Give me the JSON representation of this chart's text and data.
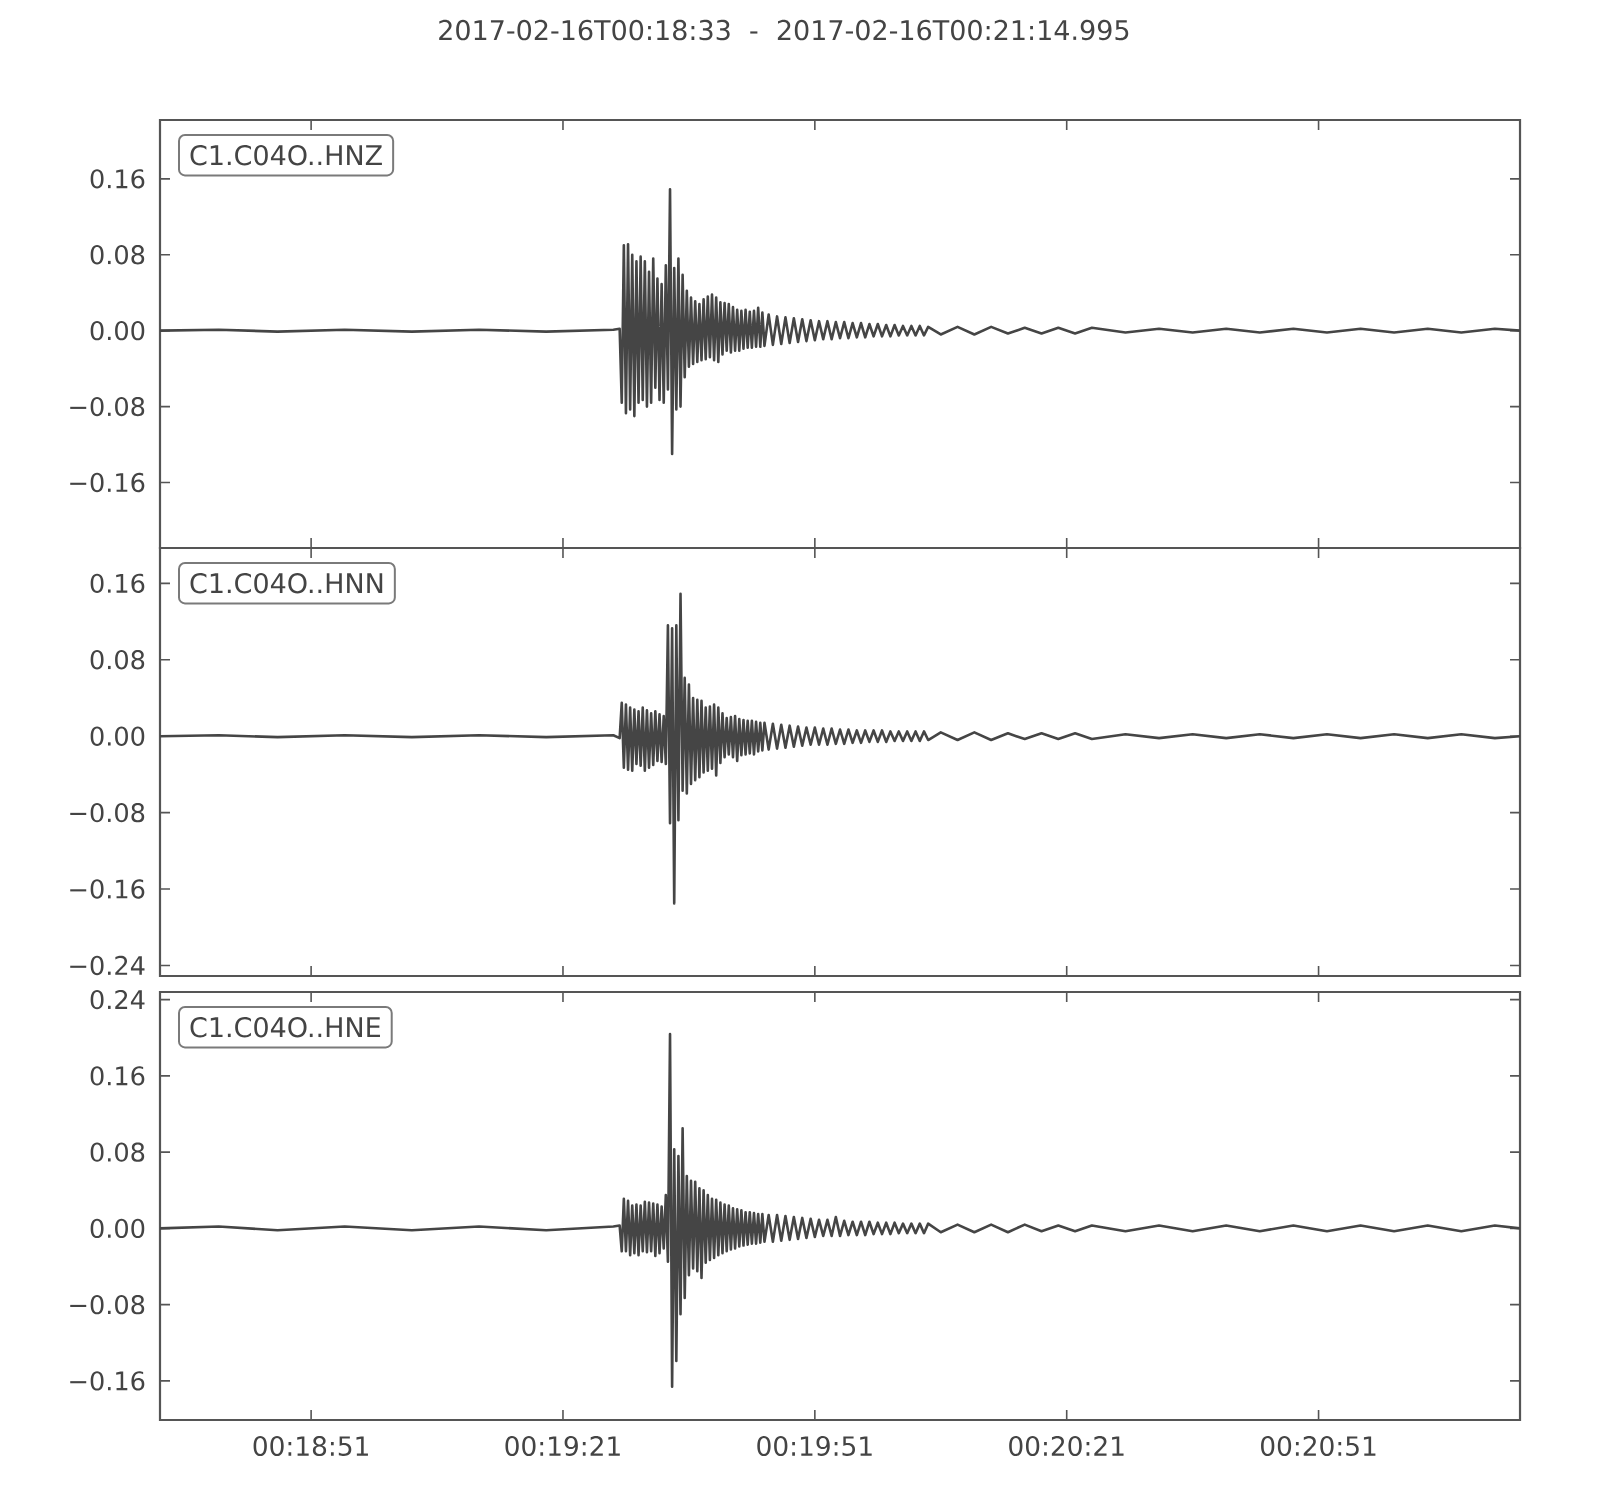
{
  "chart_data": [
    {
      "type": "line",
      "title": "2017-02-16T00:18:33  -  2017-02-16T00:21:14.995",
      "annotations": [
        "C1.C04O..HNZ"
      ],
      "x": [
        "2017-02-16T00:18:33",
        "2017-02-16T00:18:40",
        "2017-02-16T00:18:47",
        "2017-02-16T00:18:55",
        "2017-02-16T00:19:03",
        "2017-02-16T00:19:11",
        "2017-02-16T00:19:19",
        "2017-02-16T00:19:27",
        "2017-02-16T00:19:27.750",
        "2017-02-16T00:19:28",
        "2017-02-16T00:19:28.250",
        "2017-02-16T00:19:28.500",
        "2017-02-16T00:19:28.750",
        "2017-02-16T00:19:29",
        "2017-02-16T00:19:29.250",
        "2017-02-16T00:19:29.500",
        "2017-02-16T00:19:29.750",
        "2017-02-16T00:19:30",
        "2017-02-16T00:19:30.250",
        "2017-02-16T00:19:30.500",
        "2017-02-16T00:19:30.750",
        "2017-02-16T00:19:31",
        "2017-02-16T00:19:31.250",
        "2017-02-16T00:19:31.500",
        "2017-02-16T00:19:31.750",
        "2017-02-16T00:19:32",
        "2017-02-16T00:19:32.250",
        "2017-02-16T00:19:32.500",
        "2017-02-16T00:19:32.750",
        "2017-02-16T00:19:33",
        "2017-02-16T00:19:33.250",
        "2017-02-16T00:19:33.500",
        "2017-02-16T00:19:33.750",
        "2017-02-16T00:19:34",
        "2017-02-16T00:19:34.250",
        "2017-02-16T00:19:34.500",
        "2017-02-16T00:19:34.750",
        "2017-02-16T00:19:35",
        "2017-02-16T00:19:35.250",
        "2017-02-16T00:19:35.500",
        "2017-02-16T00:19:35.750",
        "2017-02-16T00:19:36",
        "2017-02-16T00:19:36.250",
        "2017-02-16T00:19:36.500",
        "2017-02-16T00:19:36.750",
        "2017-02-16T00:19:37",
        "2017-02-16T00:19:37.250",
        "2017-02-16T00:19:37.500",
        "2017-02-16T00:19:37.750",
        "2017-02-16T00:19:38",
        "2017-02-16T00:19:38.250",
        "2017-02-16T00:19:38.500",
        "2017-02-16T00:19:38.750",
        "2017-02-16T00:19:39",
        "2017-02-16T00:19:39.250",
        "2017-02-16T00:19:39.500",
        "2017-02-16T00:19:39.750",
        "2017-02-16T00:19:40",
        "2017-02-16T00:19:40.250",
        "2017-02-16T00:19:40.500",
        "2017-02-16T00:19:40.750",
        "2017-02-16T00:19:41",
        "2017-02-16T00:19:41.250",
        "2017-02-16T00:19:41.500",
        "2017-02-16T00:19:41.750",
        "2017-02-16T00:19:42",
        "2017-02-16T00:19:42.250",
        "2017-02-16T00:19:42.500",
        "2017-02-16T00:19:42.750",
        "2017-02-16T00:19:43",
        "2017-02-16T00:19:43.250",
        "2017-02-16T00:19:43.500",
        "2017-02-16T00:19:43.750",
        "2017-02-16T00:19:44",
        "2017-02-16T00:19:44.250",
        "2017-02-16T00:19:44.500",
        "2017-02-16T00:19:44.750",
        "2017-02-16T00:19:45",
        "2017-02-16T00:19:45.500",
        "2017-02-16T00:19:46",
        "2017-02-16T00:19:46.500",
        "2017-02-16T00:19:47",
        "2017-02-16T00:19:47.500",
        "2017-02-16T00:19:48",
        "2017-02-16T00:19:48.500",
        "2017-02-16T00:19:49",
        "2017-02-16T00:19:49.500",
        "2017-02-16T00:19:50",
        "2017-02-16T00:19:50.500",
        "2017-02-16T00:19:51",
        "2017-02-16T00:19:51.500",
        "2017-02-16T00:19:52",
        "2017-02-16T00:19:52.500",
        "2017-02-16T00:19:53",
        "2017-02-16T00:19:53.500",
        "2017-02-16T00:19:54",
        "2017-02-16T00:19:54.500",
        "2017-02-16T00:19:55",
        "2017-02-16T00:19:55.500",
        "2017-02-16T00:19:56",
        "2017-02-16T00:19:56.500",
        "2017-02-16T00:19:57",
        "2017-02-16T00:19:57.500",
        "2017-02-16T00:19:58",
        "2017-02-16T00:19:58.500",
        "2017-02-16T00:19:59",
        "2017-02-16T00:19:59.500",
        "2017-02-16T00:20:00",
        "2017-02-16T00:20:00.500",
        "2017-02-16T00:20:01",
        "2017-02-16T00:20:01.500",
        "2017-02-16T00:20:02",
        "2017-02-16T00:20:02.500",
        "2017-02-16T00:20:03",
        "2017-02-16T00:20:03.500",
        "2017-02-16T00:20:04",
        "2017-02-16T00:20:04.500",
        "2017-02-16T00:20:06",
        "2017-02-16T00:20:08",
        "2017-02-16T00:20:10",
        "2017-02-16T00:20:12",
        "2017-02-16T00:20:14",
        "2017-02-16T00:20:16",
        "2017-02-16T00:20:18",
        "2017-02-16T00:20:20",
        "2017-02-16T00:20:22",
        "2017-02-16T00:20:24",
        "2017-02-16T00:20:28",
        "2017-02-16T00:20:32",
        "2017-02-16T00:20:36",
        "2017-02-16T00:20:40",
        "2017-02-16T00:20:44",
        "2017-02-16T00:20:48",
        "2017-02-16T00:20:52",
        "2017-02-16T00:20:56",
        "2017-02-16T00:21:00",
        "2017-02-16T00:21:04",
        "2017-02-16T00:21:08",
        "2017-02-16T00:21:12",
        "2017-02-16T00:21:14.995"
      ],
      "values": [
        0,
        0.001,
        -0.001,
        0.001,
        -0.001,
        0.001,
        -0.001,
        0.001,
        0.002,
        -0.076,
        0.09,
        -0.087,
        0.091,
        -0.083,
        0.08,
        -0.09,
        0.073,
        -0.076,
        0.078,
        -0.073,
        0.073,
        -0.08,
        0.062,
        -0.076,
        0.076,
        -0.06,
        0.055,
        -0.073,
        0.049,
        -0.076,
        0.069,
        -0.062,
        0.149,
        -0.13,
        0.066,
        -0.083,
        0.076,
        -0.08,
        0.059,
        -0.049,
        0.042,
        -0.038,
        0.035,
        -0.035,
        0.031,
        -0.033,
        0.028,
        -0.031,
        0.033,
        -0.03,
        0.036,
        -0.028,
        0.038,
        -0.031,
        0.035,
        -0.033,
        0.03,
        -0.025,
        0.029,
        -0.021,
        0.028,
        -0.023,
        0.025,
        -0.021,
        0.022,
        -0.021,
        0.021,
        -0.019,
        0.022,
        -0.018,
        0.02,
        -0.018,
        0.021,
        -0.017,
        0.024,
        -0.017,
        0.019,
        -0.016,
        0.017,
        -0.015,
        0.015,
        -0.014,
        0.014,
        -0.013,
        0.013,
        -0.012,
        0.012,
        -0.011,
        0.011,
        -0.01,
        0.01,
        -0.009,
        0.01,
        -0.009,
        0.009,
        -0.008,
        0.009,
        -0.008,
        0.008,
        -0.007,
        0.008,
        -0.007,
        0.007,
        -0.006,
        0.007,
        -0.006,
        0.006,
        -0.006,
        0.006,
        -0.005,
        0.005,
        -0.005,
        0.005,
        -0.005,
        0.005,
        -0.005,
        0.004,
        -0.004,
        0.004,
        -0.004,
        0.004,
        -0.003,
        0.003,
        -0.003,
        0.003,
        -0.003,
        0.003,
        -0.002,
        0.002,
        -0.002,
        0.002,
        -0.002,
        0.002,
        -0.002,
        0.002,
        -0.002,
        0.002,
        -0.002,
        0.002,
        0
      ],
      "color": "#454545",
      "xlim": [
        "2017-02-16T00:18:33",
        "2017-02-16T00:21:14.995"
      ],
      "ylim": [
        -0.229,
        0.222
      ],
      "xticks": [
        {
          "value": "2017-02-16T00:18:51",
          "label": null
        },
        {
          "value": "2017-02-16T00:19:21",
          "label": null
        },
        {
          "value": "2017-02-16T00:19:51",
          "label": null
        },
        {
          "value": "2017-02-16T00:20:21",
          "label": null
        },
        {
          "value": "2017-02-16T00:20:51",
          "label": null
        }
      ],
      "yticks": [
        {
          "value": -0.16,
          "label": "−0.16"
        },
        {
          "value": -0.08,
          "label": "−0.08"
        },
        {
          "value": 0,
          "label": "0.00"
        },
        {
          "value": 0.08,
          "label": "0.08"
        },
        {
          "value": 0.16,
          "label": "0.16"
        }
      ],
      "tick_labels": "y"
    },
    {
      "type": "line",
      "annotations": [
        "C1.C04O..HNN"
      ],
      "x": [
        "2017-02-16T00:18:33",
        "2017-02-16T00:18:40",
        "2017-02-16T00:18:47",
        "2017-02-16T00:18:55",
        "2017-02-16T00:19:03",
        "2017-02-16T00:19:11",
        "2017-02-16T00:19:19",
        "2017-02-16T00:19:27",
        "2017-02-16T00:19:27.750",
        "2017-02-16T00:19:28",
        "2017-02-16T00:19:28.250",
        "2017-02-16T00:19:28.500",
        "2017-02-16T00:19:28.750",
        "2017-02-16T00:19:29",
        "2017-02-16T00:19:29.250",
        "2017-02-16T00:19:29.500",
        "2017-02-16T00:19:29.750",
        "2017-02-16T00:19:30",
        "2017-02-16T00:19:30.250",
        "2017-02-16T00:19:30.500",
        "2017-02-16T00:19:30.750",
        "2017-02-16T00:19:31",
        "2017-02-16T00:19:31.250",
        "2017-02-16T00:19:31.500",
        "2017-02-16T00:19:31.750",
        "2017-02-16T00:19:32",
        "2017-02-16T00:19:32.250",
        "2017-02-16T00:19:32.500",
        "2017-02-16T00:19:32.750",
        "2017-02-16T00:19:33",
        "2017-02-16T00:19:33.250",
        "2017-02-16T00:19:33.500",
        "2017-02-16T00:19:33.750",
        "2017-02-16T00:19:34",
        "2017-02-16T00:19:34.250",
        "2017-02-16T00:19:34.500",
        "2017-02-16T00:19:34.750",
        "2017-02-16T00:19:35",
        "2017-02-16T00:19:35.250",
        "2017-02-16T00:19:35.500",
        "2017-02-16T00:19:35.750",
        "2017-02-16T00:19:36",
        "2017-02-16T00:19:36.250",
        "2017-02-16T00:19:36.500",
        "2017-02-16T00:19:36.750",
        "2017-02-16T00:19:37",
        "2017-02-16T00:19:37.250",
        "2017-02-16T00:19:37.500",
        "2017-02-16T00:19:37.750",
        "2017-02-16T00:19:38",
        "2017-02-16T00:19:38.250",
        "2017-02-16T00:19:38.500",
        "2017-02-16T00:19:38.750",
        "2017-02-16T00:19:39",
        "2017-02-16T00:19:39.250",
        "2017-02-16T00:19:39.500",
        "2017-02-16T00:19:39.750",
        "2017-02-16T00:19:40",
        "2017-02-16T00:19:40.250",
        "2017-02-16T00:19:40.500",
        "2017-02-16T00:19:40.750",
        "2017-02-16T00:19:41",
        "2017-02-16T00:19:41.250",
        "2017-02-16T00:19:41.500",
        "2017-02-16T00:19:41.750",
        "2017-02-16T00:19:42",
        "2017-02-16T00:19:42.250",
        "2017-02-16T00:19:42.500",
        "2017-02-16T00:19:42.750",
        "2017-02-16T00:19:43",
        "2017-02-16T00:19:43.250",
        "2017-02-16T00:19:43.500",
        "2017-02-16T00:19:43.750",
        "2017-02-16T00:19:44",
        "2017-02-16T00:19:44.250",
        "2017-02-16T00:19:44.500",
        "2017-02-16T00:19:44.750",
        "2017-02-16T00:19:45",
        "2017-02-16T00:19:45.500",
        "2017-02-16T00:19:46",
        "2017-02-16T00:19:46.500",
        "2017-02-16T00:19:47",
        "2017-02-16T00:19:47.500",
        "2017-02-16T00:19:48",
        "2017-02-16T00:19:48.500",
        "2017-02-16T00:19:49",
        "2017-02-16T00:19:49.500",
        "2017-02-16T00:19:50",
        "2017-02-16T00:19:50.500",
        "2017-02-16T00:19:51",
        "2017-02-16T00:19:51.500",
        "2017-02-16T00:19:52",
        "2017-02-16T00:19:52.500",
        "2017-02-16T00:19:53",
        "2017-02-16T00:19:53.500",
        "2017-02-16T00:19:54",
        "2017-02-16T00:19:54.500",
        "2017-02-16T00:19:55",
        "2017-02-16T00:19:55.500",
        "2017-02-16T00:19:56",
        "2017-02-16T00:19:56.500",
        "2017-02-16T00:19:57",
        "2017-02-16T00:19:57.500",
        "2017-02-16T00:19:58",
        "2017-02-16T00:19:58.500",
        "2017-02-16T00:19:59",
        "2017-02-16T00:19:59.500",
        "2017-02-16T00:20:00",
        "2017-02-16T00:20:00.500",
        "2017-02-16T00:20:01",
        "2017-02-16T00:20:01.500",
        "2017-02-16T00:20:02",
        "2017-02-16T00:20:02.500",
        "2017-02-16T00:20:03",
        "2017-02-16T00:20:03.500",
        "2017-02-16T00:20:04",
        "2017-02-16T00:20:04.500",
        "2017-02-16T00:20:06",
        "2017-02-16T00:20:08",
        "2017-02-16T00:20:10",
        "2017-02-16T00:20:12",
        "2017-02-16T00:20:14",
        "2017-02-16T00:20:16",
        "2017-02-16T00:20:18",
        "2017-02-16T00:20:20",
        "2017-02-16T00:20:22",
        "2017-02-16T00:20:24",
        "2017-02-16T00:20:28",
        "2017-02-16T00:20:32",
        "2017-02-16T00:20:36",
        "2017-02-16T00:20:40",
        "2017-02-16T00:20:44",
        "2017-02-16T00:20:48",
        "2017-02-16T00:20:52",
        "2017-02-16T00:20:56",
        "2017-02-16T00:21:00",
        "2017-02-16T00:21:04",
        "2017-02-16T00:21:08",
        "2017-02-16T00:21:12",
        "2017-02-16T00:21:14.995"
      ],
      "values": [
        0,
        0.001,
        -0.001,
        0.001,
        -0.001,
        0.001,
        -0.001,
        0.001,
        -0.002,
        0.035,
        -0.033,
        0.033,
        -0.035,
        0.03,
        -0.036,
        0.028,
        -0.029,
        0.026,
        -0.031,
        0.03,
        -0.036,
        0.027,
        -0.033,
        0.024,
        -0.03,
        0.026,
        -0.026,
        0.023,
        -0.027,
        0.021,
        -0.029,
        0.116,
        -0.091,
        0.113,
        -0.175,
        0.116,
        -0.088,
        0.149,
        -0.057,
        0.061,
        -0.06,
        0.054,
        -0.05,
        0.04,
        -0.046,
        0.038,
        -0.043,
        0.037,
        -0.038,
        0.03,
        -0.036,
        0.031,
        -0.034,
        0.033,
        -0.041,
        0.03,
        -0.028,
        0.024,
        -0.022,
        0.019,
        -0.019,
        0.02,
        -0.022,
        0.021,
        -0.026,
        0.018,
        -0.02,
        0.017,
        -0.019,
        0.016,
        -0.018,
        0.016,
        -0.019,
        0.015,
        -0.016,
        0.014,
        -0.015,
        0.014,
        -0.014,
        0.013,
        -0.013,
        0.012,
        -0.012,
        0.011,
        -0.011,
        0.01,
        -0.01,
        0.009,
        -0.009,
        0.009,
        -0.009,
        0.008,
        -0.009,
        0.008,
        -0.008,
        0.007,
        -0.008,
        0.007,
        -0.007,
        0.006,
        -0.007,
        0.006,
        -0.006,
        0.006,
        -0.006,
        0.006,
        -0.006,
        0.005,
        -0.005,
        0.005,
        -0.005,
        0.005,
        -0.005,
        0.005,
        -0.005,
        0.005,
        -0.004,
        0.004,
        -0.004,
        0.004,
        -0.004,
        0.003,
        -0.003,
        0.003,
        -0.003,
        0.003,
        -0.003,
        0.002,
        -0.002,
        0.002,
        -0.002,
        0.002,
        -0.002,
        0.002,
        -0.002,
        0.002,
        -0.002,
        0.002,
        -0.002,
        0
      ],
      "color": "#454545",
      "xlim": [
        "2017-02-16T00:18:33",
        "2017-02-16T00:21:14.995"
      ],
      "ylim": [
        -0.251,
        0.197
      ],
      "xticks": [
        {
          "value": "2017-02-16T00:18:51",
          "label": null
        },
        {
          "value": "2017-02-16T00:19:21",
          "label": null
        },
        {
          "value": "2017-02-16T00:19:51",
          "label": null
        },
        {
          "value": "2017-02-16T00:20:21",
          "label": null
        },
        {
          "value": "2017-02-16T00:20:51",
          "label": null
        }
      ],
      "yticks": [
        {
          "value": -0.24,
          "label": "−0.24"
        },
        {
          "value": -0.16,
          "label": "−0.16"
        },
        {
          "value": -0.08,
          "label": "−0.08"
        },
        {
          "value": 0,
          "label": "0.00"
        },
        {
          "value": 0.08,
          "label": "0.08"
        },
        {
          "value": 0.16,
          "label": "0.16"
        }
      ],
      "tick_labels": "y"
    },
    {
      "type": "line",
      "annotations": [
        "C1.C04O..HNE"
      ],
      "x": [
        "2017-02-16T00:18:33",
        "2017-02-16T00:18:40",
        "2017-02-16T00:18:47",
        "2017-02-16T00:18:55",
        "2017-02-16T00:19:03",
        "2017-02-16T00:19:11",
        "2017-02-16T00:19:19",
        "2017-02-16T00:19:27",
        "2017-02-16T00:19:27.750",
        "2017-02-16T00:19:28",
        "2017-02-16T00:19:28.250",
        "2017-02-16T00:19:28.500",
        "2017-02-16T00:19:28.750",
        "2017-02-16T00:19:29",
        "2017-02-16T00:19:29.250",
        "2017-02-16T00:19:29.500",
        "2017-02-16T00:19:29.750",
        "2017-02-16T00:19:30",
        "2017-02-16T00:19:30.250",
        "2017-02-16T00:19:30.500",
        "2017-02-16T00:19:30.750",
        "2017-02-16T00:19:31",
        "2017-02-16T00:19:31.250",
        "2017-02-16T00:19:31.500",
        "2017-02-16T00:19:31.750",
        "2017-02-16T00:19:32",
        "2017-02-16T00:19:32.250",
        "2017-02-16T00:19:32.500",
        "2017-02-16T00:19:32.750",
        "2017-02-16T00:19:33",
        "2017-02-16T00:19:33.250",
        "2017-02-16T00:19:33.500",
        "2017-02-16T00:19:33.750",
        "2017-02-16T00:19:34",
        "2017-02-16T00:19:34.250",
        "2017-02-16T00:19:34.500",
        "2017-02-16T00:19:34.750",
        "2017-02-16T00:19:35",
        "2017-02-16T00:19:35.250",
        "2017-02-16T00:19:35.500",
        "2017-02-16T00:19:35.750",
        "2017-02-16T00:19:36",
        "2017-02-16T00:19:36.250",
        "2017-02-16T00:19:36.500",
        "2017-02-16T00:19:36.750",
        "2017-02-16T00:19:37",
        "2017-02-16T00:19:37.250",
        "2017-02-16T00:19:37.500",
        "2017-02-16T00:19:37.750",
        "2017-02-16T00:19:38",
        "2017-02-16T00:19:38.250",
        "2017-02-16T00:19:38.500",
        "2017-02-16T00:19:38.750",
        "2017-02-16T00:19:39",
        "2017-02-16T00:19:39.250",
        "2017-02-16T00:19:39.500",
        "2017-02-16T00:19:39.750",
        "2017-02-16T00:19:40",
        "2017-02-16T00:19:40.250",
        "2017-02-16T00:19:40.500",
        "2017-02-16T00:19:40.750",
        "2017-02-16T00:19:41",
        "2017-02-16T00:19:41.250",
        "2017-02-16T00:19:41.500",
        "2017-02-16T00:19:41.750",
        "2017-02-16T00:19:42",
        "2017-02-16T00:19:42.250",
        "2017-02-16T00:19:42.500",
        "2017-02-16T00:19:42.750",
        "2017-02-16T00:19:43",
        "2017-02-16T00:19:43.250",
        "2017-02-16T00:19:43.500",
        "2017-02-16T00:19:43.750",
        "2017-02-16T00:19:44",
        "2017-02-16T00:19:44.250",
        "2017-02-16T00:19:44.500",
        "2017-02-16T00:19:44.750",
        "2017-02-16T00:19:45",
        "2017-02-16T00:19:45.500",
        "2017-02-16T00:19:46",
        "2017-02-16T00:19:46.500",
        "2017-02-16T00:19:47",
        "2017-02-16T00:19:47.500",
        "2017-02-16T00:19:48",
        "2017-02-16T00:19:48.500",
        "2017-02-16T00:19:49",
        "2017-02-16T00:19:49.500",
        "2017-02-16T00:19:50",
        "2017-02-16T00:19:50.500",
        "2017-02-16T00:19:51",
        "2017-02-16T00:19:51.500",
        "2017-02-16T00:19:52",
        "2017-02-16T00:19:52.500",
        "2017-02-16T00:19:53",
        "2017-02-16T00:19:53.500",
        "2017-02-16T00:19:54",
        "2017-02-16T00:19:54.500",
        "2017-02-16T00:19:55",
        "2017-02-16T00:19:55.500",
        "2017-02-16T00:19:56",
        "2017-02-16T00:19:56.500",
        "2017-02-16T00:19:57",
        "2017-02-16T00:19:57.500",
        "2017-02-16T00:19:58",
        "2017-02-16T00:19:58.500",
        "2017-02-16T00:19:59",
        "2017-02-16T00:19:59.500",
        "2017-02-16T00:20:00",
        "2017-02-16T00:20:00.500",
        "2017-02-16T00:20:01",
        "2017-02-16T00:20:01.500",
        "2017-02-16T00:20:02",
        "2017-02-16T00:20:02.500",
        "2017-02-16T00:20:03",
        "2017-02-16T00:20:03.500",
        "2017-02-16T00:20:04",
        "2017-02-16T00:20:04.500",
        "2017-02-16T00:20:06",
        "2017-02-16T00:20:08",
        "2017-02-16T00:20:10",
        "2017-02-16T00:20:12",
        "2017-02-16T00:20:14",
        "2017-02-16T00:20:16",
        "2017-02-16T00:20:18",
        "2017-02-16T00:20:20",
        "2017-02-16T00:20:22",
        "2017-02-16T00:20:24",
        "2017-02-16T00:20:28",
        "2017-02-16T00:20:32",
        "2017-02-16T00:20:36",
        "2017-02-16T00:20:40",
        "2017-02-16T00:20:44",
        "2017-02-16T00:20:48",
        "2017-02-16T00:20:52",
        "2017-02-16T00:20:56",
        "2017-02-16T00:21:00",
        "2017-02-16T00:21:04",
        "2017-02-16T00:21:08",
        "2017-02-16T00:21:12",
        "2017-02-16T00:21:14.995"
      ],
      "values": [
        0,
        0.002,
        -0.002,
        0.002,
        -0.002,
        0.002,
        -0.002,
        0.002,
        0.003,
        -0.024,
        0.031,
        -0.024,
        0.029,
        -0.028,
        0.024,
        -0.026,
        0.025,
        -0.028,
        0.024,
        -0.024,
        0.028,
        -0.025,
        0.027,
        -0.024,
        0.026,
        -0.029,
        0.025,
        -0.026,
        0.023,
        -0.021,
        0.035,
        -0.035,
        0.204,
        -0.166,
        0.083,
        -0.139,
        0.076,
        -0.09,
        0.105,
        -0.073,
        0.055,
        -0.049,
        0.05,
        -0.042,
        0.049,
        -0.045,
        0.042,
        -0.052,
        0.04,
        -0.036,
        0.035,
        -0.033,
        0.031,
        -0.031,
        0.03,
        -0.028,
        0.027,
        -0.026,
        0.025,
        -0.024,
        0.024,
        -0.022,
        0.021,
        -0.021,
        0.02,
        -0.019,
        0.019,
        -0.018,
        0.017,
        -0.017,
        0.017,
        -0.016,
        0.016,
        -0.016,
        0.015,
        -0.015,
        0.015,
        -0.014,
        0.014,
        -0.014,
        0.014,
        -0.013,
        0.013,
        -0.012,
        0.012,
        -0.011,
        0.011,
        -0.01,
        0.01,
        -0.009,
        0.009,
        -0.008,
        0.009,
        -0.008,
        0.012,
        -0.008,
        0.008,
        -0.007,
        0.007,
        -0.007,
        0.007,
        -0.007,
        0.007,
        -0.006,
        0.006,
        -0.006,
        0.006,
        -0.006,
        0.006,
        -0.005,
        0.005,
        -0.005,
        0.005,
        -0.005,
        0.005,
        -0.005,
        0.005,
        -0.004,
        0.004,
        -0.004,
        0.004,
        -0.004,
        0.004,
        -0.003,
        0.003,
        -0.003,
        0.003,
        -0.003,
        0.003,
        -0.003,
        0.003,
        -0.003,
        0.003,
        -0.003,
        0.003,
        -0.003,
        0.003,
        -0.003,
        0.003,
        0
      ],
      "color": "#454545",
      "xlim": [
        "2017-02-16T00:18:33",
        "2017-02-16T00:21:14.995"
      ],
      "ylim": [
        -0.201,
        0.248
      ],
      "xticks": [
        {
          "value": "2017-02-16T00:18:51",
          "label": "00:18:51"
        },
        {
          "value": "2017-02-16T00:19:21",
          "label": "00:19:21"
        },
        {
          "value": "2017-02-16T00:19:51",
          "label": "00:19:51"
        },
        {
          "value": "2017-02-16T00:20:21",
          "label": "00:20:21"
        },
        {
          "value": "2017-02-16T00:20:51",
          "label": "00:20:51"
        }
      ],
      "yticks": [
        {
          "value": -0.16,
          "label": "−0.16"
        },
        {
          "value": -0.08,
          "label": "−0.08"
        },
        {
          "value": 0,
          "label": "0.00"
        },
        {
          "value": 0.08,
          "label": "0.08"
        },
        {
          "value": 0.16,
          "label": "0.16"
        },
        {
          "value": 0.24,
          "label": "0.24"
        }
      ]
    }
  ]
}
